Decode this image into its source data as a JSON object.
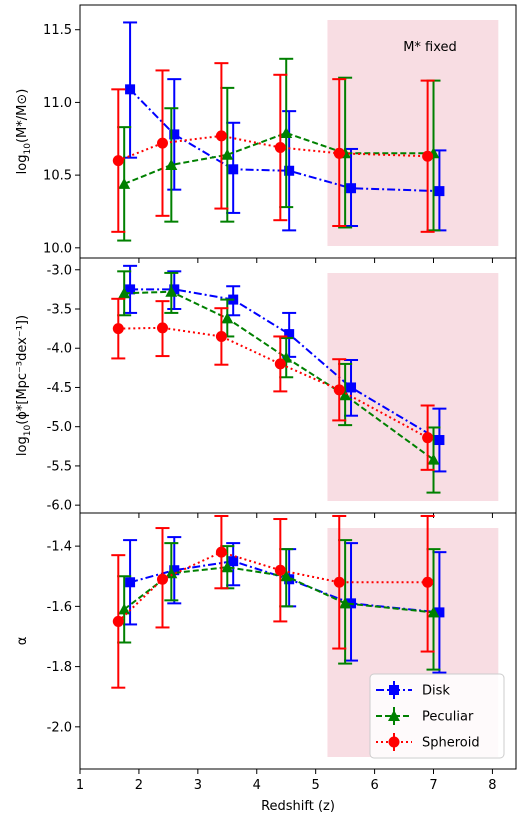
{
  "chart_data": {
    "type": "scatter",
    "x_axis": {
      "label": "Redshift (z)",
      "range": [
        1,
        8.4
      ],
      "ticks": [
        1,
        2,
        3,
        4,
        5,
        6,
        7,
        8
      ],
      "tick_labels": [
        "1",
        "2",
        "3",
        "4",
        "5",
        "6",
        "7",
        "8"
      ]
    },
    "shaded_region": {
      "x": [
        5.2,
        8.1
      ],
      "color": "#f8dde3"
    },
    "series_styles": [
      {
        "name": "Disk",
        "color": "#0000ff",
        "marker": "square",
        "linestyle": "dashdot"
      },
      {
        "name": "Peculiar",
        "color": "#008000",
        "marker": "triangle",
        "linestyle": "dashed"
      },
      {
        "name": "Spheroid",
        "color": "#ff0000",
        "marker": "circle",
        "linestyle": "dotted"
      }
    ],
    "legend": {
      "placement": "bottom-right",
      "panel": 2,
      "entries": [
        "Disk",
        "Peculiar",
        "Spheroid"
      ]
    },
    "panels": [
      {
        "ylabel_base": "log",
        "ylabel_sub": "10",
        "ylabel_rest": "(M*/M⊙)",
        "ylim": [
          9.93,
          11.67
        ],
        "yticks": [
          10.0,
          10.5,
          11.0,
          11.5
        ],
        "ytick_labels": [
          "10.0",
          "10.5",
          "11.0",
          "11.5"
        ],
        "annotation": "M* fixed",
        "series": [
          {
            "name": "Disk",
            "points": [
              {
                "x": 1.85,
                "y": 11.09,
                "lo": 10.62,
                "hi": 11.55
              },
              {
                "x": 2.6,
                "y": 10.78,
                "lo": 10.4,
                "hi": 11.16
              },
              {
                "x": 3.6,
                "y": 10.54,
                "lo": 10.24,
                "hi": 10.86
              },
              {
                "x": 4.55,
                "y": 10.53,
                "lo": 10.12,
                "hi": 10.94
              },
              {
                "x": 5.6,
                "y": 10.41,
                "lo": 10.15,
                "hi": 10.68
              },
              {
                "x": 7.1,
                "y": 10.39,
                "lo": 10.12,
                "hi": 10.67
              }
            ]
          },
          {
            "name": "Peculiar",
            "points": [
              {
                "x": 1.75,
                "y": 10.44,
                "lo": 10.05,
                "hi": 10.83
              },
              {
                "x": 2.55,
                "y": 10.57,
                "lo": 10.18,
                "hi": 10.96
              },
              {
                "x": 3.5,
                "y": 10.64,
                "lo": 10.18,
                "hi": 11.1
              },
              {
                "x": 4.5,
                "y": 10.79,
                "lo": 10.28,
                "hi": 11.3
              },
              {
                "x": 5.5,
                "y": 10.65,
                "lo": 10.14,
                "hi": 11.17
              },
              {
                "x": 7.0,
                "y": 10.65,
                "lo": 10.12,
                "hi": 11.15
              }
            ]
          },
          {
            "name": "Spheroid",
            "points": [
              {
                "x": 1.65,
                "y": 10.6,
                "lo": 10.11,
                "hi": 11.09
              },
              {
                "x": 2.4,
                "y": 10.72,
                "lo": 10.22,
                "hi": 11.22
              },
              {
                "x": 3.4,
                "y": 10.77,
                "lo": 10.27,
                "hi": 11.27
              },
              {
                "x": 4.4,
                "y": 10.69,
                "lo": 10.19,
                "hi": 11.19
              },
              {
                "x": 5.4,
                "y": 10.65,
                "lo": 10.15,
                "hi": 11.16
              },
              {
                "x": 6.9,
                "y": 10.63,
                "lo": 10.11,
                "hi": 11.15
              }
            ]
          }
        ]
      },
      {
        "ylabel_base": "log",
        "ylabel_sub": "10",
        "ylabel_rest": "(ϕ*[Mpc⁻³dex⁻¹])",
        "ylim": [
          -6.1,
          -2.85
        ],
        "yticks": [
          -6.0,
          -5.5,
          -5.0,
          -4.5,
          -4.0,
          -3.5,
          -3.0
        ],
        "ytick_labels": [
          "-6.0",
          "-5.5",
          "-5.0",
          "-4.5",
          "-4.0",
          "-3.5",
          "-3.0"
        ],
        "series": [
          {
            "name": "Disk",
            "points": [
              {
                "x": 1.85,
                "y": -3.25,
                "lo": -3.55,
                "hi": -2.95
              },
              {
                "x": 2.6,
                "y": -3.25,
                "lo": -3.5,
                "hi": -3.02
              },
              {
                "x": 3.6,
                "y": -3.38,
                "lo": -3.58,
                "hi": -3.21
              },
              {
                "x": 4.55,
                "y": -3.82,
                "lo": -4.11,
                "hi": -3.55
              },
              {
                "x": 5.6,
                "y": -4.5,
                "lo": -4.86,
                "hi": -4.15
              },
              {
                "x": 7.1,
                "y": -5.17,
                "lo": -5.57,
                "hi": -4.77
              }
            ]
          },
          {
            "name": "Peculiar",
            "points": [
              {
                "x": 1.75,
                "y": -3.3,
                "lo": -3.58,
                "hi": -3.02
              },
              {
                "x": 2.55,
                "y": -3.28,
                "lo": -3.55,
                "hi": -3.04
              },
              {
                "x": 3.5,
                "y": -3.62,
                "lo": -3.85,
                "hi": -3.38
              },
              {
                "x": 4.5,
                "y": -4.12,
                "lo": -4.37,
                "hi": -3.87
              },
              {
                "x": 5.5,
                "y": -4.6,
                "lo": -4.98,
                "hi": -4.2
              },
              {
                "x": 7.0,
                "y": -5.42,
                "lo": -5.84,
                "hi": -5.01
              }
            ]
          },
          {
            "name": "Spheroid",
            "points": [
              {
                "x": 1.65,
                "y": -3.75,
                "lo": -4.13,
                "hi": -3.37
              },
              {
                "x": 2.4,
                "y": -3.74,
                "lo": -4.1,
                "hi": -3.4
              },
              {
                "x": 3.4,
                "y": -3.85,
                "lo": -4.21,
                "hi": -3.49
              },
              {
                "x": 4.4,
                "y": -4.2,
                "lo": -4.55,
                "hi": -3.85
              },
              {
                "x": 5.4,
                "y": -4.53,
                "lo": -4.92,
                "hi": -4.14
              },
              {
                "x": 6.9,
                "y": -5.14,
                "lo": -5.55,
                "hi": -4.73
              }
            ]
          }
        ]
      },
      {
        "ylabel_base": "α",
        "ylabel_sub": "",
        "ylabel_rest": "",
        "ylim": [
          -2.14,
          -1.29
        ],
        "yticks": [
          -2.0,
          -1.8,
          -1.6,
          -1.4
        ],
        "ytick_labels": [
          "-2.0",
          "-1.8",
          "-1.6",
          "-1.4"
        ],
        "series": [
          {
            "name": "Disk",
            "points": [
              {
                "x": 1.85,
                "y": -1.52,
                "lo": -1.66,
                "hi": -1.38
              },
              {
                "x": 2.6,
                "y": -1.48,
                "lo": -1.59,
                "hi": -1.37
              },
              {
                "x": 3.6,
                "y": -1.45,
                "lo": -1.53,
                "hi": -1.39
              },
              {
                "x": 4.55,
                "y": -1.51,
                "lo": -1.6,
                "hi": -1.41
              },
              {
                "x": 5.6,
                "y": -1.59,
                "lo": -1.78,
                "hi": -1.39
              },
              {
                "x": 7.1,
                "y": -1.62,
                "lo": -1.82,
                "hi": -1.42
              }
            ]
          },
          {
            "name": "Peculiar",
            "points": [
              {
                "x": 1.75,
                "y": -1.61,
                "lo": -1.72,
                "hi": -1.5
              },
              {
                "x": 2.55,
                "y": -1.49,
                "lo": -1.58,
                "hi": -1.39
              },
              {
                "x": 3.5,
                "y": -1.47,
                "lo": -1.54,
                "hi": -1.4
              },
              {
                "x": 4.5,
                "y": -1.5,
                "lo": -1.6,
                "hi": -1.41
              },
              {
                "x": 5.5,
                "y": -1.59,
                "lo": -1.79,
                "hi": -1.38
              },
              {
                "x": 7.0,
                "y": -1.62,
                "lo": -1.81,
                "hi": -1.41
              }
            ]
          },
          {
            "name": "Spheroid",
            "points": [
              {
                "x": 1.65,
                "y": -1.65,
                "lo": -1.87,
                "hi": -1.43
              },
              {
                "x": 2.4,
                "y": -1.51,
                "lo": -1.67,
                "hi": -1.34
              },
              {
                "x": 3.4,
                "y": -1.42,
                "lo": -1.54,
                "hi": -1.3
              },
              {
                "x": 4.4,
                "y": -1.48,
                "lo": -1.65,
                "hi": -1.31
              },
              {
                "x": 5.4,
                "y": -1.52,
                "lo": -1.74,
                "hi": -1.3
              },
              {
                "x": 6.9,
                "y": -1.52,
                "lo": -1.75,
                "hi": -1.3
              }
            ]
          }
        ]
      }
    ]
  }
}
